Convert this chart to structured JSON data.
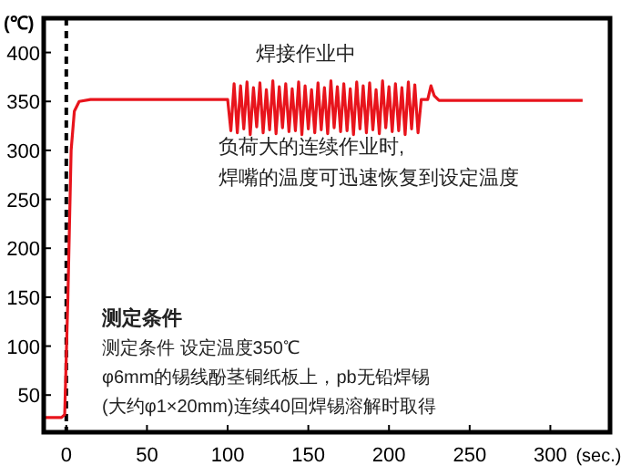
{
  "chart_data": {
    "type": "line",
    "xlabel": "(sec.)",
    "ylabel": "(℃)",
    "xlim": [
      -14,
      337
    ],
    "ylim": [
      12,
      435
    ],
    "xticks": [
      0,
      50,
      100,
      150,
      200,
      250,
      300
    ],
    "yticks": [
      50,
      100,
      150,
      200,
      250,
      300,
      350,
      400
    ],
    "grid": false,
    "line_style": "solid",
    "ref_lines": [
      {
        "axis": "x",
        "value": 0,
        "color": "#000000",
        "line_style": "dashed"
      }
    ],
    "annotations": [
      "焊接作业中",
      "负荷大的连续作业时,",
      "焊嘴的温度可迅速恢复到设定温度",
      "测定条件",
      "测定条件 设定温度350℃",
      "φ6mm的锡线酚茎铜纸板上，pb无铅焊锡",
      "(大约φ1×20mm)连续40回焊锡溶解时取得"
    ],
    "series": [
      {
        "color": "#e8141c",
        "x": [
          -14,
          -3,
          -1,
          1,
          3,
          5,
          8,
          15,
          50,
          99,
          100,
          102,
          104,
          106,
          108,
          110,
          112,
          114,
          116,
          118,
          120,
          122,
          124,
          126,
          128,
          130,
          132,
          134,
          136,
          138,
          140,
          142,
          144,
          146,
          148,
          150,
          152,
          154,
          156,
          158,
          160,
          162,
          164,
          166,
          168,
          170,
          172,
          174,
          176,
          178,
          180,
          182,
          184,
          186,
          188,
          190,
          192,
          194,
          196,
          198,
          200,
          202,
          204,
          206,
          208,
          210,
          212,
          214,
          216,
          218,
          220,
          224,
          226,
          228,
          231,
          250,
          320
        ],
        "values": [
          27,
          27,
          30,
          150,
          300,
          340,
          350,
          352,
          352,
          352,
          352,
          320,
          368,
          318,
          366,
          322,
          370,
          316,
          364,
          324,
          369,
          318,
          362,
          321,
          371,
          317,
          365,
          323,
          368,
          319,
          363,
          320,
          370,
          316,
          366,
          322,
          362,
          318,
          369,
          321,
          364,
          317,
          371,
          323,
          365,
          319,
          368,
          320,
          363,
          316,
          370,
          322,
          366,
          318,
          369,
          321,
          362,
          317,
          371,
          323,
          365,
          319,
          368,
          320,
          364,
          316,
          370,
          322,
          367,
          318,
          352,
          352,
          366,
          356,
          351,
          351,
          351
        ]
      }
    ]
  }
}
